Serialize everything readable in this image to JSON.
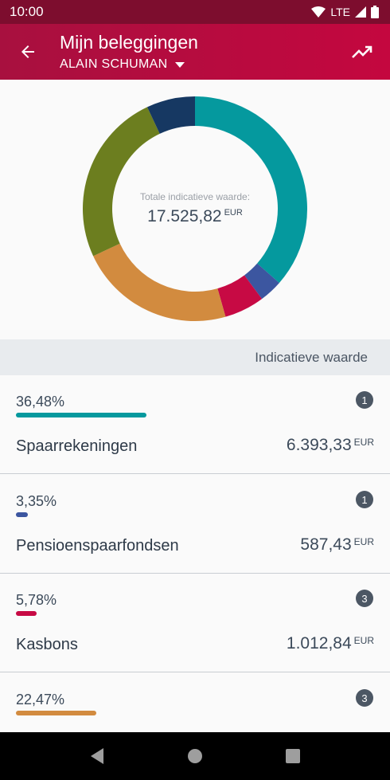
{
  "status_bar": {
    "time": "10:00",
    "network": "LTE"
  },
  "app_bar": {
    "title": "Mijn beleggingen",
    "account_name": "ALAIN SCHUMAN"
  },
  "chart_data": {
    "type": "pie",
    "center_label": "Totale indicatieve waarde:",
    "center_value": "17.525,82",
    "center_currency": "EUR",
    "slices": [
      {
        "label": "Spaarrekeningen",
        "percent": 36.48,
        "color": "#05999e"
      },
      {
        "label": "Pensioenspaarfondsen",
        "percent": 3.35,
        "color": "#3c56a0"
      },
      {
        "label": "Kasbons",
        "percent": 5.78,
        "color": "#c70a44"
      },
      {
        "label": "",
        "percent": 22.47,
        "color": "#d28b3f"
      },
      {
        "label": "",
        "percent": 24.92,
        "color": "#6c7e1f"
      },
      {
        "label": "",
        "percent": 7.0,
        "color": "#163862"
      }
    ]
  },
  "list": {
    "header": "Indicatieve waarde",
    "rows": [
      {
        "percent": "36,48%",
        "fraction": 0.3648,
        "color": "#05999e",
        "count": "1",
        "name": "Spaarrekeningen",
        "amount": "6.393,33",
        "currency": "EUR"
      },
      {
        "percent": "3,35%",
        "fraction": 0.0335,
        "color": "#3c56a0",
        "count": "1",
        "name": "Pensioenspaarfondsen",
        "amount": "587,43",
        "currency": "EUR"
      },
      {
        "percent": "5,78%",
        "fraction": 0.0578,
        "color": "#c70a44",
        "count": "3",
        "name": "Kasbons",
        "amount": "1.012,84",
        "currency": "EUR"
      },
      {
        "percent": "22,47%",
        "fraction": 0.2247,
        "color": "#d28b3f",
        "count": "3",
        "name": "",
        "amount": "",
        "currency": ""
      }
    ]
  },
  "icons": {
    "back": "arrow-left-icon",
    "dropdown": "caret-down-icon",
    "trend": "trending-up-icon"
  }
}
